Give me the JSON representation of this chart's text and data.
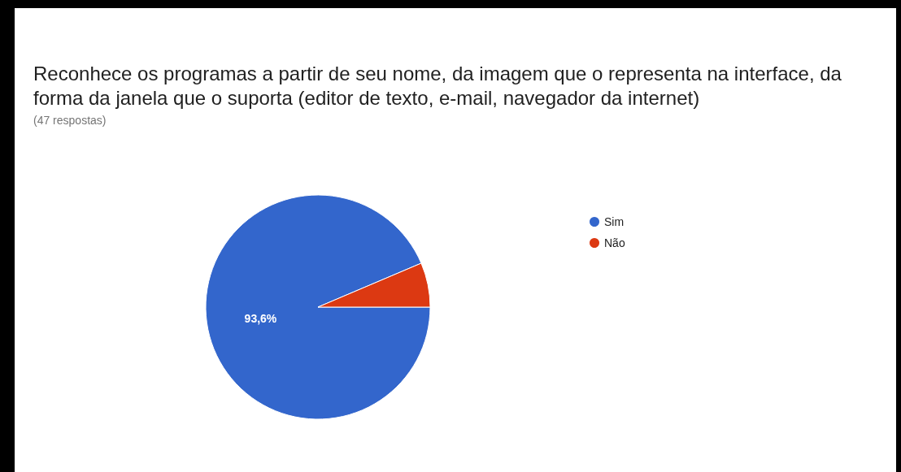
{
  "chart_data": {
    "type": "pie",
    "title": "Reconhece os programas a partir de seu nome, da imagem que o representa na interface, da forma da janela que o suporta (editor de texto, e-mail, navegador da internet)",
    "subtitle": "(47 respostas)",
    "categories": [
      "Sim",
      "Não"
    ],
    "values": [
      93.6,
      6.4
    ],
    "colors": [
      "#3366cc",
      "#dc3912"
    ],
    "value_labels": [
      "93,6%",
      null
    ],
    "legend": "top right"
  }
}
